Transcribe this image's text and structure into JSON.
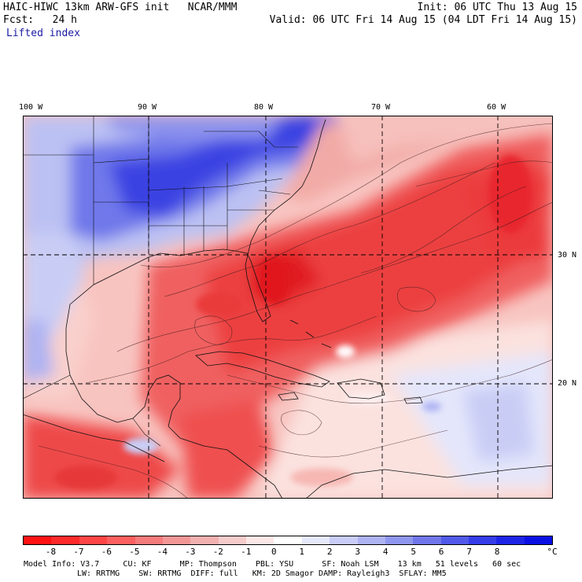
{
  "header": {
    "left_line1": "HAIC-HIWC 13km ARW-GFS init   NCAR/MMM",
    "left_line2": "Fcst:   24 h",
    "left_line3": "Lifted index",
    "right_line1": "Init: 06 UTC Thu 13 Aug 15",
    "right_line2": "Valid: 06 UTC Fri 14 Aug 15 (04 LDT Fri 14 Aug 15)"
  },
  "map": {
    "lon_labels": [
      "100 W",
      "90 W",
      "80 W",
      "70 W",
      "60 W"
    ],
    "lat_labels": [
      "30 N",
      "20 N"
    ],
    "colors": {
      "strong_negative": "#e8232a",
      "moderate_negative": "#f05a5a",
      "weak_negative": "#f7a8a4",
      "near_zero": "#fbe0dc",
      "weak_positive": "#c9cdf5",
      "moderate_positive": "#7f86ee",
      "strong_positive": "#2a33e0",
      "contour": "#222222",
      "grid": "#000000"
    }
  },
  "colorbar": {
    "ticks": [
      "-8",
      "-7",
      "-6",
      "-5",
      "-4",
      "-3",
      "-2",
      "-1",
      "0",
      "1",
      "2",
      "3",
      "4",
      "5",
      "6",
      "7",
      "8"
    ],
    "unit": "°C",
    "colors": [
      "#ff1212",
      "#ff2a2a",
      "#ff4646",
      "#fb6060",
      "#f67b7b",
      "#f39696",
      "#f3b0b0",
      "#f6cbcb",
      "#fde6e6",
      "#ffffff",
      "#e6e8fc",
      "#c9cdf7",
      "#aeb3f2",
      "#8f96ee",
      "#7177ea",
      "#525aea",
      "#353de8",
      "#1d25e6",
      "#0a10e4"
    ]
  },
  "footer": {
    "line1": "Model Info: V3.7     CU: KF      MP: Thompson    PBL: YSU      SF: Noah LSM    13 km   51 levels   60 sec",
    "line2": "LW: RRTMG    SW: RRTMG  DIFF: full   KM: 2D Smagor DAMP: Rayleigh3  SFLAY: MM5"
  }
}
